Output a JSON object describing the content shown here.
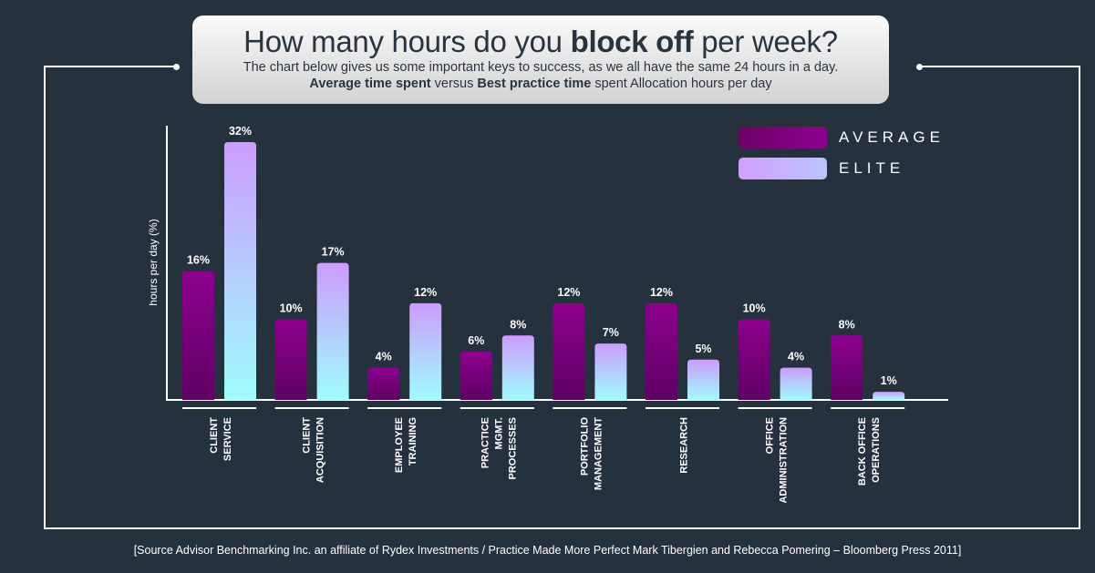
{
  "header": {
    "title_pre": "How many hours do you ",
    "title_bold": "block off",
    "title_post": " per week?",
    "subtitle_line1": "The chart below gives us some important keys to success, as we all have the same 24 hours in a day.",
    "subtitle_b1": "Average time spent",
    "subtitle_m1": " versus ",
    "subtitle_b2": "Best practice time",
    "subtitle_m2": " spent Allocation hours per day"
  },
  "chart_data": {
    "type": "bar",
    "ylabel": "hours per day (%)",
    "ylim": [
      0,
      32
    ],
    "grid": false,
    "legend_placement": "top-right",
    "categories": [
      [
        "CLIENT",
        "SERVICE"
      ],
      [
        "CLIENT",
        "ACQUISITION"
      ],
      [
        "EMPLOYEE",
        "TRAINING"
      ],
      [
        "PRACTICE",
        "MGMT.",
        "PROCESSES"
      ],
      [
        "PORTFOLIO",
        "MANAGEMENT"
      ],
      [
        "RESEARCH"
      ],
      [
        "OFFICE",
        "ADMINISTRATION"
      ],
      [
        "BACK OFFICE",
        "OPERATIONS"
      ]
    ],
    "series": [
      {
        "name": "AVERAGE",
        "values": [
          16,
          10,
          4,
          6,
          12,
          12,
          10,
          8
        ],
        "color_top": "#8e008e",
        "color_bottom": "#5e0063"
      },
      {
        "name": "ELITE",
        "values": [
          32,
          17,
          12,
          8,
          7,
          5,
          4,
          1
        ],
        "color_top": "#cc9cfd",
        "color_bottom": "#9ffcfd"
      }
    ],
    "value_suffix": "%"
  },
  "source": "[Source Advisor Benchmarking Inc. an affiliate of Rydex Investments / Practice Made More Perfect Mark Tibergien and Rebecca Pomering – Bloomberg Press 2011]"
}
